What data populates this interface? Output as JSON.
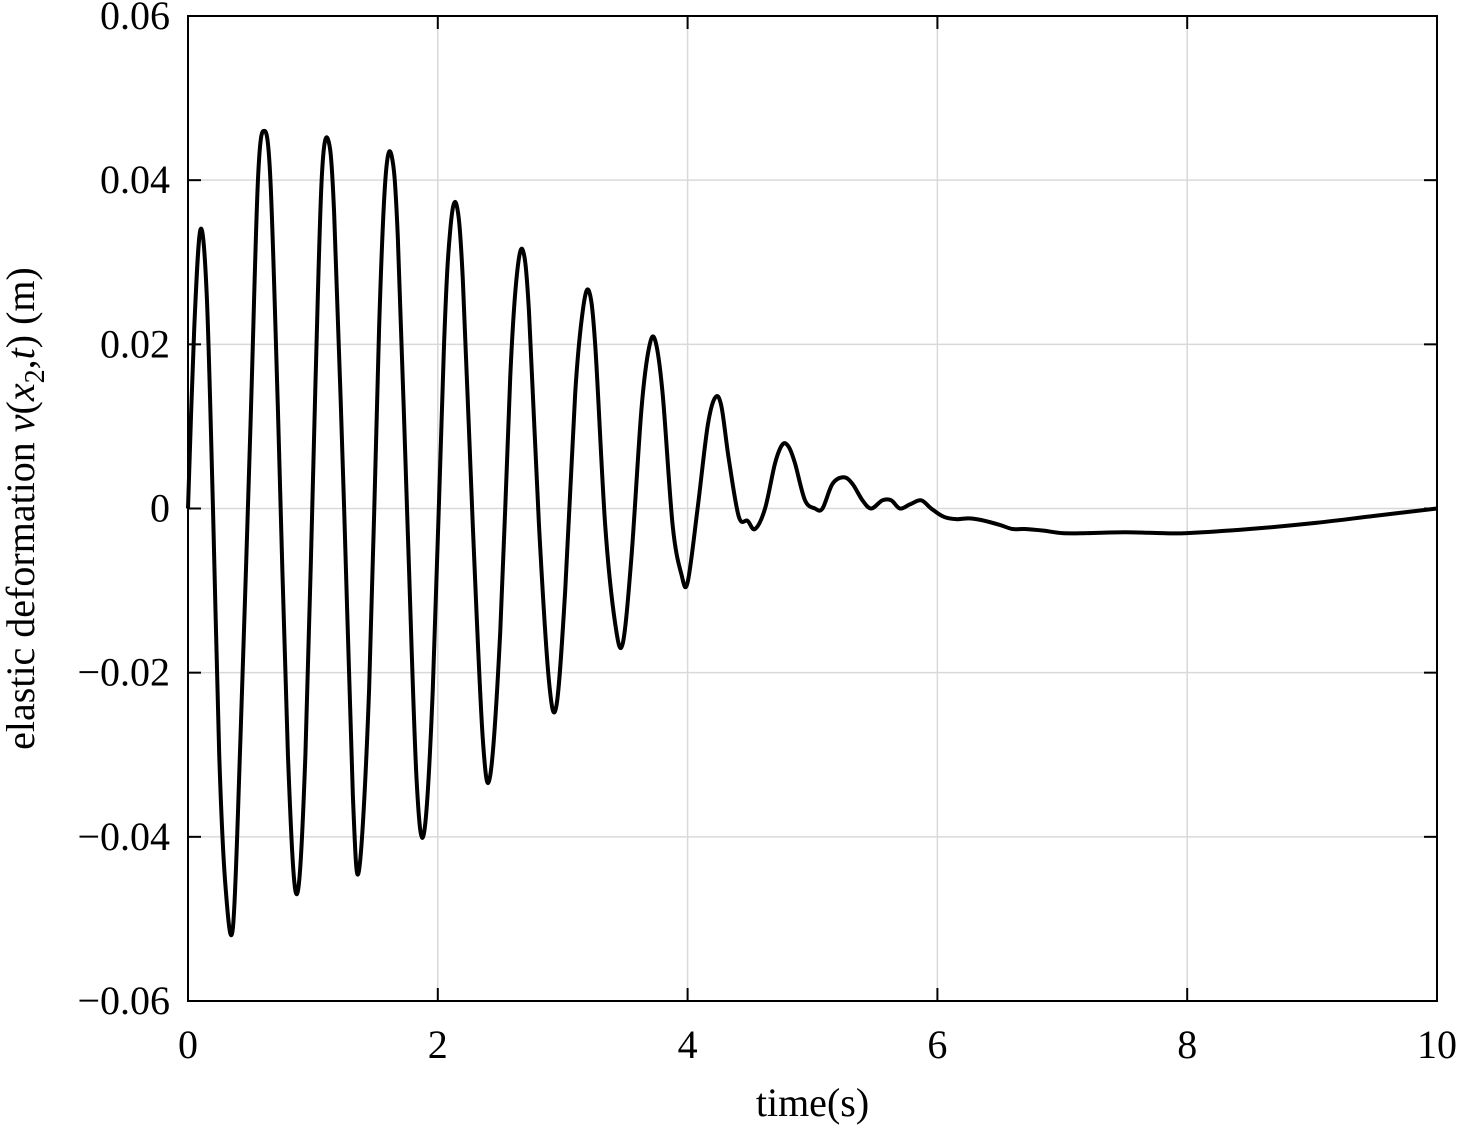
{
  "chart_data": {
    "type": "line",
    "title": "",
    "xlabel": "time(s)",
    "ylabel": "elastic deformation ν(x2,t) (m)",
    "ylabel_parts": {
      "prefix": "elastic deformation ",
      "nu": "ν",
      "open": "(",
      "x": "x",
      "sub": "2",
      "comma": ",",
      "t": "t",
      "close": ") (m)"
    },
    "xlim": [
      0,
      10
    ],
    "ylim": [
      -0.06,
      0.06
    ],
    "x_ticks": [
      0,
      2,
      4,
      6,
      8,
      10
    ],
    "x_tick_labels": [
      "0",
      "2",
      "4",
      "6",
      "8",
      "10"
    ],
    "y_ticks": [
      -0.06,
      -0.04,
      -0.02,
      0,
      0.02,
      0.04,
      0.06
    ],
    "y_tick_labels": [
      "−0.06",
      "−0.04",
      "−0.02",
      "0",
      "0.02",
      "0.04",
      "0.06"
    ],
    "grid": true,
    "line_color": "#000000",
    "series": [
      {
        "x": [
          0,
          0.05,
          0.1,
          0.15,
          0.2,
          0.25,
          0.3,
          0.36,
          0.42,
          0.5,
          0.56,
          0.61,
          0.66,
          0.72,
          0.8,
          0.87,
          0.94,
          1.02,
          1.07,
          1.12,
          1.17,
          1.25,
          1.32,
          1.37,
          1.45,
          1.53,
          1.58,
          1.63,
          1.68,
          1.76,
          1.83,
          1.89,
          1.96,
          2.05,
          2.1,
          2.15,
          2.2,
          2.28,
          2.36,
          2.42,
          2.5,
          2.58,
          2.63,
          2.68,
          2.73,
          2.81,
          2.89,
          2.95,
          3.02,
          3.1,
          3.16,
          3.21,
          3.26,
          3.34,
          3.42,
          3.48,
          3.55,
          3.63,
          3.69,
          3.74,
          3.8,
          3.88,
          3.95,
          4.0,
          4.08,
          4.16,
          4.22,
          4.27,
          4.33,
          4.41,
          4.48,
          4.54,
          4.62,
          4.7,
          4.76,
          4.81,
          4.86,
          4.94,
          5.02,
          5.08,
          5.16,
          5.25,
          5.32,
          5.4,
          5.47,
          5.56,
          5.63,
          5.7,
          5.78,
          5.87,
          5.95,
          6.05,
          6.15,
          6.25,
          6.35,
          6.5,
          6.6,
          6.7,
          6.85,
          7.0,
          7.2,
          7.5,
          7.8,
          8.0,
          8.5,
          9.0,
          9.5,
          10.0
        ],
        "y": [
          0,
          0.022,
          0.034,
          0.026,
          0.0,
          -0.03,
          -0.046,
          -0.051,
          -0.028,
          0.01,
          0.04,
          0.046,
          0.04,
          0.012,
          -0.03,
          -0.047,
          -0.03,
          0.015,
          0.04,
          0.045,
          0.036,
          0.0,
          -0.035,
          -0.044,
          -0.022,
          0.022,
          0.04,
          0.043,
          0.033,
          -0.003,
          -0.033,
          -0.0395,
          -0.022,
          0.02,
          0.034,
          0.037,
          0.028,
          -0.002,
          -0.028,
          -0.0325,
          -0.015,
          0.016,
          0.028,
          0.0315,
          0.024,
          -0.002,
          -0.021,
          -0.024,
          -0.01,
          0.014,
          0.024,
          0.0265,
          0.02,
          -0.002,
          -0.014,
          -0.0165,
          -0.006,
          0.012,
          0.0195,
          0.0205,
          0.014,
          -0.002,
          -0.008,
          -0.009,
          0.0,
          0.01,
          0.0135,
          0.0125,
          0.006,
          -0.001,
          -0.0015,
          -0.0025,
          0.0,
          0.0055,
          0.0078,
          0.0075,
          0.0055,
          0.001,
          0.0,
          0.0,
          0.003,
          0.0038,
          0.003,
          0.001,
          0.0,
          0.001,
          0.001,
          0.0,
          0.0005,
          0.001,
          0.0,
          -0.001,
          -0.0013,
          -0.0012,
          -0.0014,
          -0.002,
          -0.0025,
          -0.0025,
          -0.0027,
          -0.003,
          -0.003,
          -0.0029,
          -0.003,
          -0.003,
          -0.0025,
          -0.0018,
          -0.0009,
          0.0
        ]
      }
    ]
  }
}
